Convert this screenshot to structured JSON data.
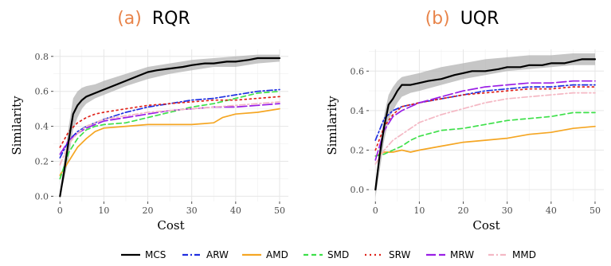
{
  "charts": [
    {
      "panel": "(a)",
      "name": "RQR",
      "title_color": "#e8844a",
      "xlabel": "Cost",
      "ylabel": "Similarity",
      "xlim": [
        -1.5,
        52
      ],
      "ylim": [
        -0.03,
        0.84
      ],
      "xticks": [
        0,
        10,
        20,
        30,
        40,
        50
      ],
      "yticks": [
        0.0,
        0.2,
        0.4,
        0.6,
        0.8
      ],
      "ytick_labels": [
        "0.0",
        "0.2",
        "0.4",
        "0.6",
        "0.8"
      ],
      "band": {
        "x": [
          0,
          1,
          2,
          3,
          4,
          5,
          6,
          8,
          10,
          15,
          20,
          25,
          30,
          35,
          40,
          45,
          50
        ],
        "lower": [
          0.0,
          0.1,
          0.22,
          0.38,
          0.45,
          0.5,
          0.53,
          0.56,
          0.58,
          0.63,
          0.67,
          0.7,
          0.72,
          0.74,
          0.74,
          0.76,
          0.77
        ],
        "upper": [
          0.02,
          0.22,
          0.4,
          0.56,
          0.6,
          0.62,
          0.63,
          0.64,
          0.66,
          0.7,
          0.74,
          0.76,
          0.78,
          0.79,
          0.8,
          0.81,
          0.81
        ]
      }
    },
    {
      "panel": "(b)",
      "name": "UQR",
      "title_color": "#e8844a",
      "xlabel": "Cost",
      "ylabel": "Similarity",
      "xlim": [
        -1.5,
        52
      ],
      "ylim": [
        -0.06,
        0.71
      ],
      "xticks": [
        0,
        10,
        20,
        30,
        40,
        50
      ],
      "yticks": [
        0.0,
        0.2,
        0.4,
        0.6
      ],
      "ytick_labels": [
        "0.0",
        "0.2",
        "0.4",
        "0.6"
      ],
      "band": {
        "x": [
          0,
          1,
          2,
          3,
          4,
          5,
          6,
          8,
          10,
          15,
          20,
          25,
          30,
          35,
          40,
          45,
          50
        ],
        "lower": [
          -0.04,
          0.1,
          0.25,
          0.35,
          0.4,
          0.44,
          0.47,
          0.49,
          0.5,
          0.53,
          0.56,
          0.58,
          0.6,
          0.61,
          0.62,
          0.63,
          0.63
        ],
        "upper": [
          0.03,
          0.22,
          0.38,
          0.48,
          0.52,
          0.55,
          0.57,
          0.58,
          0.59,
          0.62,
          0.64,
          0.66,
          0.67,
          0.68,
          0.68,
          0.69,
          0.69
        ]
      }
    }
  ],
  "chart_data": [
    {
      "type": "line",
      "title": "RQR",
      "xlabel": "Cost",
      "ylabel": "Similarity",
      "xlim": [
        0,
        50
      ],
      "ylim": [
        0.0,
        0.8
      ],
      "grid": true,
      "legend_position": "bottom",
      "series": [
        {
          "name": "MCS",
          "x": [
            0,
            1,
            2,
            3,
            4,
            5,
            6,
            8,
            10,
            12,
            15,
            18,
            20,
            22,
            25,
            28,
            30,
            33,
            35,
            38,
            40,
            43,
            45,
            47,
            50
          ],
          "y": [
            0.0,
            0.15,
            0.32,
            0.47,
            0.52,
            0.55,
            0.57,
            0.59,
            0.61,
            0.63,
            0.66,
            0.69,
            0.71,
            0.72,
            0.73,
            0.74,
            0.75,
            0.76,
            0.76,
            0.77,
            0.77,
            0.78,
            0.79,
            0.79,
            0.79
          ]
        },
        {
          "name": "ARW",
          "x": [
            0,
            2,
            4,
            6,
            8,
            10,
            15,
            20,
            25,
            30,
            35,
            40,
            45,
            50
          ],
          "y": [
            0.22,
            0.32,
            0.37,
            0.4,
            0.42,
            0.44,
            0.48,
            0.51,
            0.53,
            0.55,
            0.56,
            0.58,
            0.6,
            0.61
          ]
        },
        {
          "name": "AMD",
          "x": [
            0,
            2,
            4,
            6,
            8,
            10,
            15,
            20,
            25,
            30,
            35,
            37,
            40,
            45,
            50
          ],
          "y": [
            0.12,
            0.2,
            0.28,
            0.33,
            0.37,
            0.39,
            0.4,
            0.41,
            0.41,
            0.41,
            0.42,
            0.45,
            0.47,
            0.48,
            0.5
          ]
        },
        {
          "name": "SMD",
          "x": [
            0,
            2,
            4,
            6,
            8,
            10,
            15,
            20,
            25,
            30,
            35,
            40,
            45,
            50
          ],
          "y": [
            0.1,
            0.25,
            0.33,
            0.38,
            0.4,
            0.41,
            0.42,
            0.45,
            0.48,
            0.51,
            0.53,
            0.56,
            0.59,
            0.6
          ]
        },
        {
          "name": "SRW",
          "x": [
            0,
            2,
            4,
            6,
            8,
            10,
            15,
            20,
            25,
            30,
            35,
            40,
            45,
            50
          ],
          "y": [
            0.28,
            0.37,
            0.42,
            0.45,
            0.47,
            0.48,
            0.5,
            0.52,
            0.53,
            0.54,
            0.55,
            0.55,
            0.56,
            0.57
          ]
        },
        {
          "name": "MRW",
          "x": [
            0,
            2,
            4,
            6,
            8,
            10,
            15,
            20,
            25,
            30,
            35,
            40,
            45,
            50
          ],
          "y": [
            0.24,
            0.32,
            0.36,
            0.39,
            0.41,
            0.43,
            0.45,
            0.47,
            0.49,
            0.5,
            0.51,
            0.51,
            0.52,
            0.53
          ]
        },
        {
          "name": "MMD",
          "x": [
            0,
            2,
            4,
            6,
            8,
            10,
            15,
            20,
            25,
            30,
            35,
            40,
            45,
            50
          ],
          "y": [
            0.18,
            0.3,
            0.36,
            0.4,
            0.42,
            0.44,
            0.46,
            0.48,
            0.49,
            0.5,
            0.51,
            0.52,
            0.53,
            0.54
          ]
        }
      ]
    },
    {
      "type": "line",
      "title": "UQR",
      "xlabel": "Cost",
      "ylabel": "Similarity",
      "xlim": [
        0,
        50
      ],
      "ylim": [
        0.0,
        0.65
      ],
      "grid": true,
      "legend_position": "bottom",
      "series": [
        {
          "name": "MCS",
          "x": [
            0,
            1,
            2,
            3,
            4,
            5,
            6,
            8,
            10,
            12,
            15,
            18,
            20,
            22,
            25,
            28,
            30,
            33,
            35,
            38,
            40,
            43,
            45,
            47,
            50
          ],
          "y": [
            0.0,
            0.18,
            0.32,
            0.43,
            0.46,
            0.5,
            0.53,
            0.53,
            0.54,
            0.55,
            0.56,
            0.58,
            0.59,
            0.6,
            0.6,
            0.61,
            0.62,
            0.62,
            0.63,
            0.63,
            0.64,
            0.64,
            0.65,
            0.66,
            0.66
          ]
        },
        {
          "name": "ARW",
          "x": [
            0,
            2,
            4,
            6,
            8,
            10,
            15,
            20,
            25,
            30,
            35,
            40,
            45,
            50
          ],
          "y": [
            0.25,
            0.36,
            0.4,
            0.42,
            0.43,
            0.44,
            0.46,
            0.48,
            0.5,
            0.51,
            0.52,
            0.52,
            0.53,
            0.53
          ]
        },
        {
          "name": "AMD",
          "x": [
            0,
            2,
            4,
            6,
            8,
            10,
            15,
            20,
            25,
            30,
            35,
            40,
            45,
            50
          ],
          "y": [
            0.17,
            0.19,
            0.19,
            0.2,
            0.19,
            0.2,
            0.22,
            0.24,
            0.25,
            0.26,
            0.28,
            0.29,
            0.31,
            0.32
          ]
        },
        {
          "name": "SMD",
          "x": [
            0,
            2,
            4,
            6,
            8,
            10,
            15,
            20,
            25,
            30,
            35,
            40,
            45,
            50
          ],
          "y": [
            0.17,
            0.18,
            0.2,
            0.22,
            0.25,
            0.27,
            0.3,
            0.31,
            0.33,
            0.35,
            0.36,
            0.37,
            0.39,
            0.39
          ]
        },
        {
          "name": "SRW",
          "x": [
            0,
            2,
            4,
            6,
            8,
            10,
            15,
            20,
            25,
            30,
            35,
            40,
            45,
            50
          ],
          "y": [
            0.2,
            0.32,
            0.38,
            0.42,
            0.43,
            0.44,
            0.46,
            0.48,
            0.49,
            0.5,
            0.51,
            0.51,
            0.52,
            0.52
          ]
        },
        {
          "name": "MRW",
          "x": [
            0,
            2,
            4,
            6,
            8,
            10,
            15,
            20,
            25,
            30,
            35,
            40,
            45,
            50
          ],
          "y": [
            0.15,
            0.3,
            0.37,
            0.4,
            0.42,
            0.44,
            0.47,
            0.5,
            0.52,
            0.53,
            0.54,
            0.54,
            0.55,
            0.55
          ]
        },
        {
          "name": "MMD",
          "x": [
            0,
            2,
            4,
            6,
            8,
            10,
            15,
            20,
            25,
            30,
            35,
            40,
            45,
            50
          ],
          "y": [
            0.13,
            0.2,
            0.25,
            0.28,
            0.31,
            0.34,
            0.38,
            0.41,
            0.44,
            0.46,
            0.47,
            0.48,
            0.49,
            0.49
          ]
        }
      ]
    }
  ],
  "legend": [
    {
      "name": "MCS",
      "color": "#000000",
      "dash": "solid"
    },
    {
      "name": "ARW",
      "color": "#1f2fe0",
      "dash": "dashdot"
    },
    {
      "name": "AMD",
      "color": "#f5a623",
      "dash": "solid"
    },
    {
      "name": "SMD",
      "color": "#3ee04a",
      "dash": "dashed"
    },
    {
      "name": "SRW",
      "color": "#e0231b",
      "dash": "dotted"
    },
    {
      "name": "MRW",
      "color": "#9a1ee6",
      "dash": "longdash"
    },
    {
      "name": "MMD",
      "color": "#f4b8c4",
      "dash": "dashdot"
    }
  ]
}
